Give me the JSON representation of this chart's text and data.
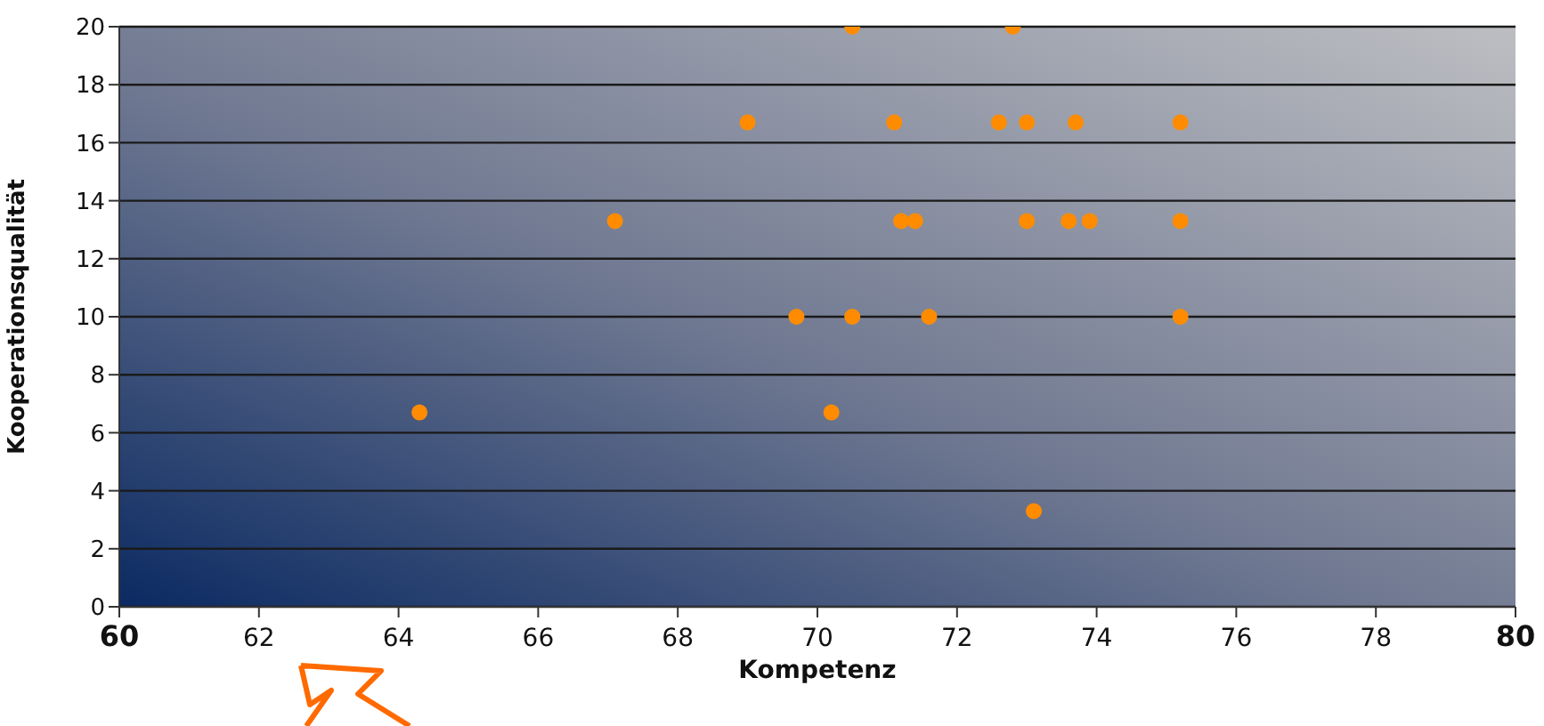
{
  "chart_data": {
    "type": "scatter",
    "xlabel": "Kompetenz",
    "ylabel": "Kooperationsqualität",
    "x": [
      70.5,
      72.8,
      69.0,
      71.1,
      72.6,
      73.0,
      73.7,
      75.2,
      67.1,
      71.2,
      71.4,
      73.0,
      73.6,
      73.9,
      75.2,
      69.7,
      70.5,
      71.6,
      75.2,
      64.3,
      70.2,
      73.1
    ],
    "values": [
      20,
      20,
      16.7,
      16.7,
      16.7,
      16.7,
      16.7,
      16.7,
      13.3,
      13.3,
      13.3,
      13.3,
      13.3,
      13.3,
      13.3,
      10,
      10,
      10,
      10,
      6.7,
      6.7,
      3.3
    ],
    "color": "#ff8c00",
    "marker": "circle",
    "grid": "y",
    "legend": false,
    "xlim": [
      60,
      80
    ],
    "xticks": [
      60,
      62,
      64,
      66,
      68,
      70,
      72,
      74,
      76,
      78,
      80
    ],
    "ylim": [
      0,
      20
    ],
    "yticks": [
      0,
      2,
      4,
      6,
      8,
      10,
      12,
      14,
      16,
      18,
      20
    ]
  }
}
